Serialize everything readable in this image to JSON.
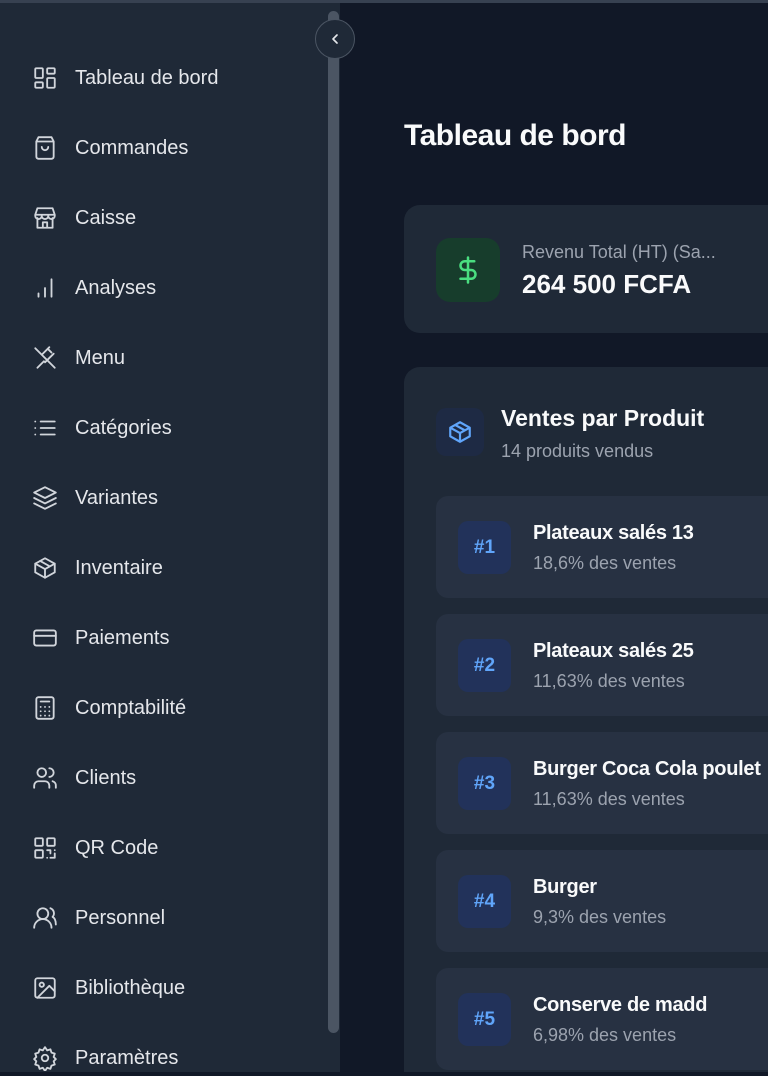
{
  "sidebar": {
    "collapse_icon": "chevron-left-icon",
    "items": [
      {
        "label": "Tableau de bord",
        "icon": "layout-dashboard-icon"
      },
      {
        "label": "Commandes",
        "icon": "shopping-bag-icon"
      },
      {
        "label": "Caisse",
        "icon": "store-icon"
      },
      {
        "label": "Analyses",
        "icon": "bar-chart-icon"
      },
      {
        "label": "Menu",
        "icon": "utensils-crossed-icon"
      },
      {
        "label": "Catégories",
        "icon": "list-icon"
      },
      {
        "label": "Variantes",
        "icon": "layers-icon"
      },
      {
        "label": "Inventaire",
        "icon": "package-icon"
      },
      {
        "label": "Paiements",
        "icon": "credit-card-icon"
      },
      {
        "label": "Comptabilité",
        "icon": "calculator-icon"
      },
      {
        "label": "Clients",
        "icon": "users-icon"
      },
      {
        "label": "QR Code",
        "icon": "qr-code-icon"
      },
      {
        "label": "Personnel",
        "icon": "user-group-icon"
      },
      {
        "label": "Bibliothèque",
        "icon": "image-icon"
      },
      {
        "label": "Paramètres",
        "icon": "settings-icon"
      }
    ]
  },
  "main": {
    "title": "Tableau de bord",
    "revenue": {
      "label": "Revenu Total (HT) (Sa...",
      "value": "264 500 FCFA",
      "icon": "dollar-icon",
      "color": "#4ade80"
    },
    "products": {
      "title": "Ventes par Produit",
      "subtitle": "14 produits vendus",
      "icon": "package-icon",
      "items": [
        {
          "rank": "#1",
          "name": "Plateaux salés 13",
          "share": "18,6% des ventes"
        },
        {
          "rank": "#2",
          "name": "Plateaux salés 25",
          "share": "11,63% des ventes"
        },
        {
          "rank": "#3",
          "name": "Burger Coca Cola poulet",
          "share": "11,63% des ventes"
        },
        {
          "rank": "#4",
          "name": "Burger",
          "share": "9,3% des ventes"
        },
        {
          "rank": "#5",
          "name": "Conserve de madd",
          "share": "6,98% des ventes"
        }
      ]
    }
  }
}
